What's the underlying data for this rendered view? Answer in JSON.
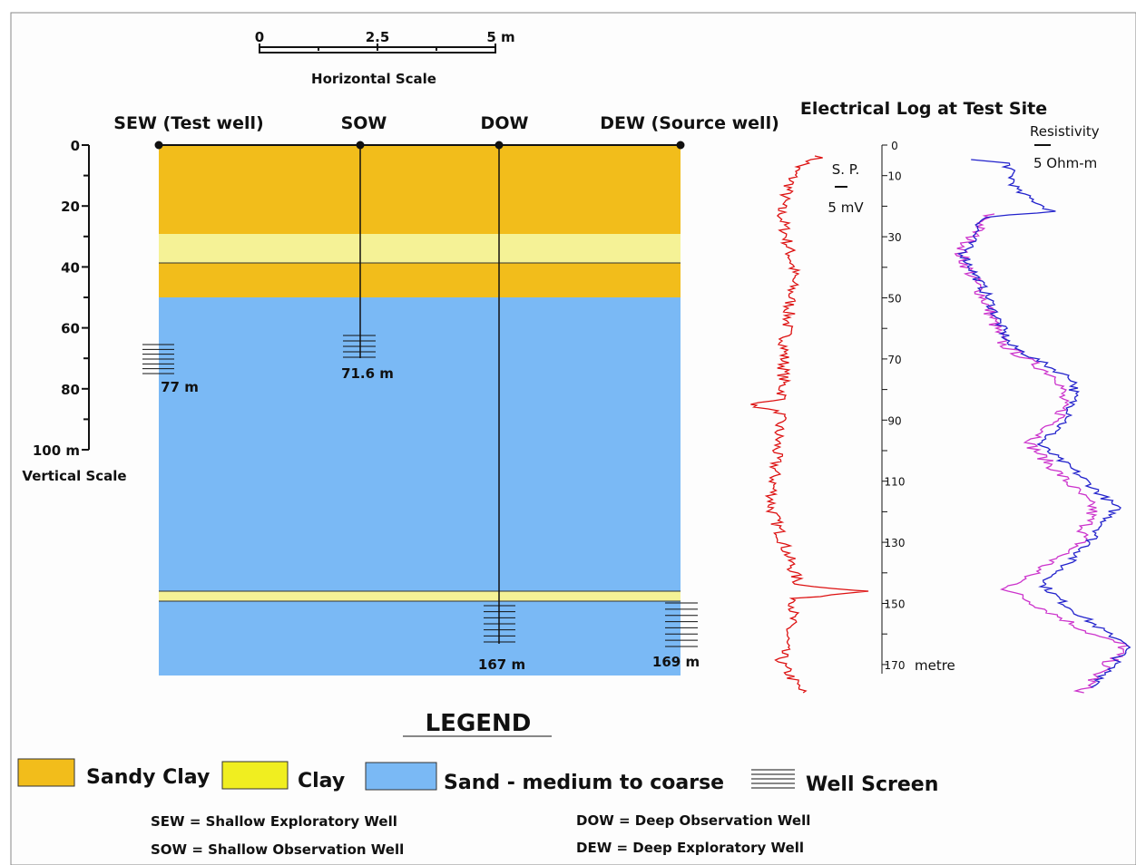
{
  "horizontal_scale": {
    "ticks": [
      "0",
      "2.5",
      "5 m"
    ],
    "label": "Horizontal Scale"
  },
  "wells": [
    "SEW (Test well)",
    "SOW",
    "DOW",
    "DEW (Source well)"
  ],
  "vertical_scale": {
    "ticks": [
      "0",
      "20",
      "40",
      "60",
      "80",
      "100 m"
    ],
    "label": "Vertical Scale"
  },
  "screen_depths": [
    "77 m",
    "71.6 m",
    "167 m",
    "169 m"
  ],
  "electrical_log": {
    "title": "Electrical Log at Test Site",
    "sp_label": "S. P.",
    "sp_scale": "5 mV",
    "resistivity_label": "Resistivity",
    "resistivity_scale": "5 Ohm-m",
    "depth_ticks": [
      "0",
      "10",
      "30",
      "50",
      "70",
      "90",
      "110",
      "130",
      "150",
      "170"
    ],
    "depth_unit": "metre"
  },
  "legend": {
    "title": "LEGEND",
    "items": [
      "Sandy Clay",
      "Clay",
      "Sand - medium to coarse",
      "Well Screen"
    ],
    "abbreviations": [
      "SEW = Shallow Exploratory Well",
      "SOW = Shallow Observation Well",
      "DOW = Deep Observation Well",
      "DEW = Deep Exploratory Well"
    ]
  }
}
